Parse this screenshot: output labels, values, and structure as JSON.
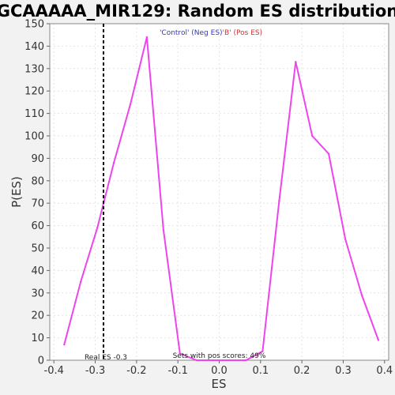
{
  "chart_data": {
    "type": "line",
    "title": "GCAAAAA_MIR129: Random ES distribution",
    "xlabel": "ES",
    "ylabel": "P(ES)",
    "xlim": [
      -0.41,
      0.41
    ],
    "ylim": [
      0,
      150
    ],
    "x_ticks": [
      -0.4,
      -0.3,
      -0.2,
      -0.1,
      0.0,
      0.1,
      0.2,
      0.3,
      0.4
    ],
    "x_tick_labels": [
      "-0.4",
      "-0.3",
      "-0.2",
      "-0.1",
      "0.0",
      "0.1",
      "0.2",
      "0.3",
      "0.4"
    ],
    "y_ticks": [
      0,
      10,
      20,
      30,
      40,
      50,
      60,
      70,
      80,
      90,
      100,
      110,
      120,
      130,
      140,
      150
    ],
    "y_tick_labels": [
      "0",
      "10",
      "20",
      "30",
      "40",
      "50",
      "60",
      "70",
      "80",
      "90",
      "100",
      "110",
      "120",
      "130",
      "140",
      "150"
    ],
    "grid": true,
    "legend": [
      {
        "text": "'Control' (Neg ES)",
        "color": "#3333cc"
      },
      {
        "text": "'B' (Pos ES)",
        "color": "#cc3333"
      }
    ],
    "series": [
      {
        "color": "#ee44ee",
        "points": [
          [
            -0.375,
            7
          ],
          [
            -0.335,
            35
          ],
          [
            -0.295,
            59
          ],
          [
            -0.255,
            88
          ],
          [
            -0.215,
            114
          ],
          [
            -0.175,
            144
          ],
          [
            -0.135,
            58
          ],
          [
            -0.095,
            3
          ],
          [
            -0.055,
            0
          ],
          [
            -0.015,
            0
          ],
          [
            0.025,
            0
          ],
          [
            0.065,
            0
          ],
          [
            0.105,
            4
          ],
          [
            0.145,
            71
          ],
          [
            0.185,
            133
          ],
          [
            0.225,
            100
          ],
          [
            0.265,
            92
          ],
          [
            0.305,
            54
          ],
          [
            0.345,
            29
          ],
          [
            0.385,
            9
          ]
        ]
      }
    ],
    "real_es": {
      "value": -0.28,
      "label": "Real ES -0.3"
    },
    "pos_scores_label": "Sets with pos scores: 49%"
  }
}
